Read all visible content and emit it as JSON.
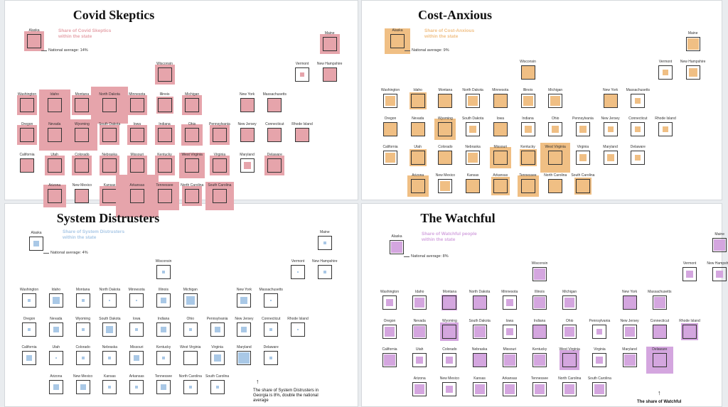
{
  "colors": {
    "Covid Skeptics": "#e6a4ab",
    "Cost-Anxious": "#f0bf84",
    "System Distrusters": "#a9c8e6",
    "The Watchful": "#d4a6df"
  },
  "legend_note": "National average:",
  "chart_data": [
    {
      "type": "tile-map",
      "title": "Covid Skeptics",
      "legend_title": "Share of Covid Skeptics within the state",
      "national_average_label": "14%",
      "national_average": 14,
      "states": [
        {
          "name": "Alaska",
          "value": 14
        },
        {
          "name": "Maine",
          "value": 14
        },
        {
          "name": "Wisconsin",
          "value": 14
        },
        {
          "name": "Vermont",
          "value": 3
        },
        {
          "name": "New Hampshire",
          "value": 10
        },
        {
          "name": "Washington",
          "value": 14
        },
        {
          "name": "Idaho",
          "value": 22
        },
        {
          "name": "Montana",
          "value": 14
        },
        {
          "name": "North Dakota",
          "value": 26
        },
        {
          "name": "Minnesota",
          "value": 14
        },
        {
          "name": "Illinois",
          "value": 12
        },
        {
          "name": "Michigan",
          "value": 14
        },
        {
          "name": "New York",
          "value": 10
        },
        {
          "name": "Massachusetts",
          "value": 10
        },
        {
          "name": "Oregon",
          "value": 14
        },
        {
          "name": "Nevada",
          "value": 22
        },
        {
          "name": "Wyoming",
          "value": 22
        },
        {
          "name": "South Dakota",
          "value": 14
        },
        {
          "name": "Iowa",
          "value": 14
        },
        {
          "name": "Indiana",
          "value": 14
        },
        {
          "name": "Ohio",
          "value": 15
        },
        {
          "name": "Pennsylvania",
          "value": 14
        },
        {
          "name": "New Jersey",
          "value": 10
        },
        {
          "name": "Connecticut",
          "value": 10
        },
        {
          "name": "Rhode Island",
          "value": 10
        },
        {
          "name": "California",
          "value": 10
        },
        {
          "name": "Utah",
          "value": 14
        },
        {
          "name": "Colorado",
          "value": 14
        },
        {
          "name": "Nebraska",
          "value": 14
        },
        {
          "name": "Missouri",
          "value": 14
        },
        {
          "name": "Kentucky",
          "value": 14
        },
        {
          "name": "West Virginia",
          "value": 18
        },
        {
          "name": "Virginia",
          "value": 14
        },
        {
          "name": "Maryland",
          "value": 5
        },
        {
          "name": "Delaware",
          "value": 14
        },
        {
          "name": "Arizona",
          "value": 16
        },
        {
          "name": "New Mexico",
          "value": 10
        },
        {
          "name": "Kansas",
          "value": 14
        },
        {
          "name": "Arkansas",
          "value": 32
        },
        {
          "name": "Tennessee",
          "value": 20
        },
        {
          "name": "North Carolina",
          "value": 14
        },
        {
          "name": "South Carolina",
          "value": 20
        }
      ]
    },
    {
      "type": "tile-map",
      "title": "Cost-Anxious",
      "legend_title": "Share of Cost-Anxious within the state",
      "national_average_label": "9%",
      "national_average": 9,
      "states": [
        {
          "name": "Alaska",
          "value": 18
        },
        {
          "name": "Maine",
          "value": 8
        },
        {
          "name": "Wisconsin",
          "value": 9
        },
        {
          "name": "Vermont",
          "value": 4
        },
        {
          "name": "New Hampshire",
          "value": 6
        },
        {
          "name": "Washington",
          "value": 7
        },
        {
          "name": "Idaho",
          "value": 12
        },
        {
          "name": "Montana",
          "value": 9
        },
        {
          "name": "North Dakota",
          "value": 7
        },
        {
          "name": "Minnesota",
          "value": 9
        },
        {
          "name": "Illinois",
          "value": 7
        },
        {
          "name": "Michigan",
          "value": 7
        },
        {
          "name": "New York",
          "value": 9
        },
        {
          "name": "Massachusetts",
          "value": 4
        },
        {
          "name": "Oregon",
          "value": 9
        },
        {
          "name": "Nevada",
          "value": 9
        },
        {
          "name": "Wyoming",
          "value": 15
        },
        {
          "name": "South Dakota",
          "value": 5
        },
        {
          "name": "Iowa",
          "value": 9
        },
        {
          "name": "Indiana",
          "value": 5
        },
        {
          "name": "Ohio",
          "value": 5
        },
        {
          "name": "Pennsylvania",
          "value": 5
        },
        {
          "name": "New Jersey",
          "value": 4
        },
        {
          "name": "Connecticut",
          "value": 4
        },
        {
          "name": "Rhode Island",
          "value": 4
        },
        {
          "name": "California",
          "value": 7
        },
        {
          "name": "Utah",
          "value": 12
        },
        {
          "name": "Colorado",
          "value": 9
        },
        {
          "name": "Nebraska",
          "value": 7
        },
        {
          "name": "Missouri",
          "value": 15
        },
        {
          "name": "Kentucky",
          "value": 12
        },
        {
          "name": "West Virginia",
          "value": 21
        },
        {
          "name": "Virginia",
          "value": 5
        },
        {
          "name": "Maryland",
          "value": 5
        },
        {
          "name": "Delaware",
          "value": 4
        },
        {
          "name": "Arizona",
          "value": 15
        },
        {
          "name": "New Mexico",
          "value": 7
        },
        {
          "name": "Kansas",
          "value": 10
        },
        {
          "name": "Arkansas",
          "value": 13
        },
        {
          "name": "Tennessee",
          "value": 15
        },
        {
          "name": "North Carolina",
          "value": 9
        },
        {
          "name": "South Carolina",
          "value": 12
        }
      ]
    },
    {
      "type": "tile-map",
      "title": "System Distrusters",
      "legend_title": "Share of System Distrusters within the state",
      "national_average_label": "4%",
      "national_average": 4,
      "annotation": "The share of System Distrusters in Georgia is 8%, double the national average",
      "states": [
        {
          "name": "Alaska",
          "value": 4
        },
        {
          "name": "Maine",
          "value": 2
        },
        {
          "name": "Wisconsin",
          "value": 2
        },
        {
          "name": "Vermont",
          "value": 1
        },
        {
          "name": "New Hampshire",
          "value": 2
        },
        {
          "name": "Washington",
          "value": 2
        },
        {
          "name": "Idaho",
          "value": 5
        },
        {
          "name": "Montana",
          "value": 2
        },
        {
          "name": "North Dakota",
          "value": 1
        },
        {
          "name": "Minnesota",
          "value": 1
        },
        {
          "name": "Illinois",
          "value": 4
        },
        {
          "name": "Michigan",
          "value": 6
        },
        {
          "name": "New York",
          "value": 5
        },
        {
          "name": "Massachusetts",
          "value": 1
        },
        {
          "name": "Oregon",
          "value": 2
        },
        {
          "name": "Nevada",
          "value": 4
        },
        {
          "name": "Wyoming",
          "value": 2
        },
        {
          "name": "South Dakota",
          "value": 5
        },
        {
          "name": "Iowa",
          "value": 2
        },
        {
          "name": "Indiana",
          "value": 4
        },
        {
          "name": "Ohio",
          "value": 2
        },
        {
          "name": "Pennsylvania",
          "value": 4
        },
        {
          "name": "New Jersey",
          "value": 4
        },
        {
          "name": "Connecticut",
          "value": 2
        },
        {
          "name": "Rhode Island",
          "value": 1
        },
        {
          "name": "California",
          "value": 4
        },
        {
          "name": "Utah",
          "value": 1
        },
        {
          "name": "Colorado",
          "value": 2
        },
        {
          "name": "Nebraska",
          "value": 2
        },
        {
          "name": "Missouri",
          "value": 4
        },
        {
          "name": "Kentucky",
          "value": 2
        },
        {
          "name": "West Virginia",
          "value": 0
        },
        {
          "name": "Virginia",
          "value": 5
        },
        {
          "name": "Maryland",
          "value": 8
        },
        {
          "name": "Delaware",
          "value": 2
        },
        {
          "name": "Arizona",
          "value": 4
        },
        {
          "name": "New Mexico",
          "value": 4
        },
        {
          "name": "Kansas",
          "value": 2
        },
        {
          "name": "Arkansas",
          "value": 2
        },
        {
          "name": "Tennessee",
          "value": 4
        },
        {
          "name": "North Carolina",
          "value": 2
        },
        {
          "name": "South Carolina",
          "value": 2
        }
      ]
    },
    {
      "type": "tile-map",
      "title": "The Watchful",
      "legend_title": "Share of Watchful people within the state",
      "national_average_label": "8%",
      "national_average": 8,
      "annotation": "The share of Watchful",
      "states": [
        {
          "name": "Alaska",
          "value": 8
        },
        {
          "name": "Maine",
          "value": 8
        },
        {
          "name": "Wisconsin",
          "value": 8
        },
        {
          "name": "Vermont",
          "value": 5
        },
        {
          "name": "New Hampshire",
          "value": 5
        },
        {
          "name": "Washington",
          "value": 5
        },
        {
          "name": "Idaho",
          "value": 7
        },
        {
          "name": "Montana",
          "value": 11
        },
        {
          "name": "North Dakota",
          "value": 9
        },
        {
          "name": "Minnesota",
          "value": 5
        },
        {
          "name": "Illinois",
          "value": 8
        },
        {
          "name": "Michigan",
          "value": 7
        },
        {
          "name": "New York",
          "value": 9
        },
        {
          "name": "Massachusetts",
          "value": 8
        },
        {
          "name": "Oregon",
          "value": 7
        },
        {
          "name": "Nevada",
          "value": 8
        },
        {
          "name": "Wyoming",
          "value": 13
        },
        {
          "name": "South Dakota",
          "value": 8
        },
        {
          "name": "Iowa",
          "value": 5
        },
        {
          "name": "Indiana",
          "value": 10
        },
        {
          "name": "Ohio",
          "value": 7
        },
        {
          "name": "Pennsylvania",
          "value": 4
        },
        {
          "name": "New Jersey",
          "value": 7
        },
        {
          "name": "Connecticut",
          "value": 10
        },
        {
          "name": "Rhode Island",
          "value": 12
        },
        {
          "name": "California",
          "value": 8
        },
        {
          "name": "Utah",
          "value": 5
        },
        {
          "name": "Colorado",
          "value": 5
        },
        {
          "name": "Nebraska",
          "value": 9
        },
        {
          "name": "Missouri",
          "value": 8
        },
        {
          "name": "Kentucky",
          "value": 8
        },
        {
          "name": "West Virginia",
          "value": 14
        },
        {
          "name": "Virginia",
          "value": 5
        },
        {
          "name": "Maryland",
          "value": 8
        },
        {
          "name": "Delaware",
          "value": 19
        },
        {
          "name": "Arizona",
          "value": 7
        },
        {
          "name": "New Mexico",
          "value": 5
        },
        {
          "name": "Kansas",
          "value": 7
        },
        {
          "name": "Arkansas",
          "value": 7
        },
        {
          "name": "Tennessee",
          "value": 7
        },
        {
          "name": "North Carolina",
          "value": 7
        },
        {
          "name": "South Carolina",
          "value": 7
        }
      ]
    }
  ]
}
